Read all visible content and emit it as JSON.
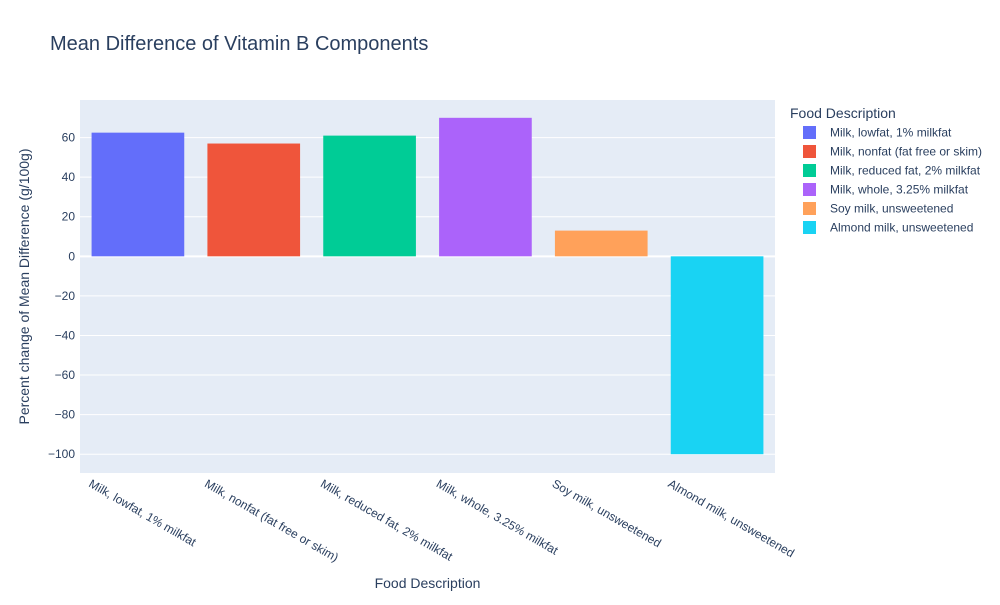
{
  "chart_data": {
    "type": "bar",
    "title": "Mean Difference of Vitamin B Components",
    "xlabel": "Food Description",
    "ylabel": "Percent change of Mean Difference (g/100g)",
    "categories": [
      "Milk, lowfat, 1% milkfat",
      "Milk, nonfat (fat free or skim)",
      "Milk, reduced fat, 2% milkfat",
      "Milk, whole, 3.25% milkfat",
      "Soy milk, unsweetened",
      "Almond milk, unsweetened"
    ],
    "values": [
      62.5,
      57,
      61,
      70,
      13,
      -100
    ],
    "colors": [
      "#636efa",
      "#EF553B",
      "#00cc96",
      "#ab63fa",
      "#FFA15A",
      "#19d3f3"
    ],
    "ylim": [
      -109.5,
      79
    ],
    "yticks": [
      60,
      40,
      20,
      0,
      -20,
      -40,
      -60,
      -80,
      -100
    ],
    "ytick_labels": [
      "60",
      "40",
      "20",
      "0",
      "−20",
      "−40",
      "−60",
      "−80",
      "−100"
    ],
    "grid": true,
    "legend": {
      "title": "Food Description",
      "placement": "right",
      "entries": [
        "Milk, lowfat, 1% milkfat",
        "Milk, nonfat (fat free or skim)",
        "Milk, reduced fat, 2% milkfat",
        "Milk, whole, 3.25% milkfat",
        "Soy milk, unsweetened",
        "Almond milk, unsweetened"
      ]
    },
    "plot_background": "#e5ecf6",
    "gridline_color": "#ffffff"
  }
}
